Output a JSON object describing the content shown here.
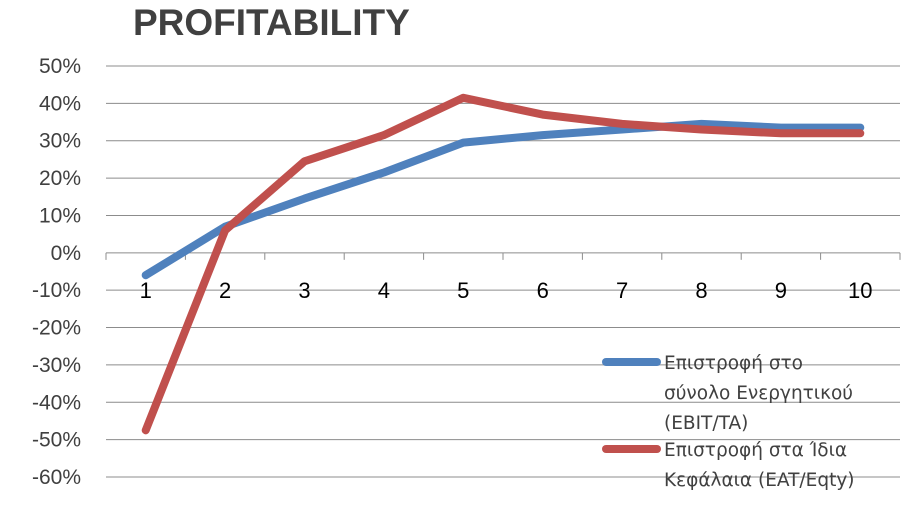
{
  "chart_data": {
    "type": "line",
    "title": "PROFITABILITY",
    "categories": [
      "1",
      "2",
      "3",
      "4",
      "5",
      "6",
      "7",
      "8",
      "9",
      "10"
    ],
    "y_ticks": [
      "50%",
      "40%",
      "30%",
      "20%",
      "10%",
      "0%",
      "-10%",
      "-20%",
      "-30%",
      "-40%",
      "-50%",
      "-60%"
    ],
    "ylim": [
      -0.6,
      0.5
    ],
    "y_tick_values": [
      0.5,
      0.4,
      0.3,
      0.2,
      0.1,
      0.0,
      -0.1,
      -0.2,
      -0.3,
      -0.4,
      -0.5,
      -0.6
    ],
    "grid": true,
    "legend_position": "bottom-right",
    "series": [
      {
        "name": "Επιστροφή στο σύνολο Ενεργητικού (EBIT/TA)",
        "legend_lines": [
          "Επιστροφή στο",
          "σύνολο  Ενεργητικού",
          "(EBIT/TA)"
        ],
        "color": "#4f81bd",
        "values": [
          -0.06,
          0.07,
          0.145,
          0.215,
          0.295,
          0.315,
          0.33,
          0.345,
          0.335,
          0.335
        ]
      },
      {
        "name": "Επιστροφή στα Ίδια Κεφάλαια (EAT/Eqty)",
        "legend_lines": [
          "Επιστροφή στα Ίδια",
          "Κεφάλαια (EAT/Eqty)"
        ],
        "color": "#c0504d",
        "values": [
          -0.475,
          0.06,
          0.245,
          0.315,
          0.415,
          0.37,
          0.345,
          0.33,
          0.32,
          0.32
        ]
      }
    ]
  }
}
